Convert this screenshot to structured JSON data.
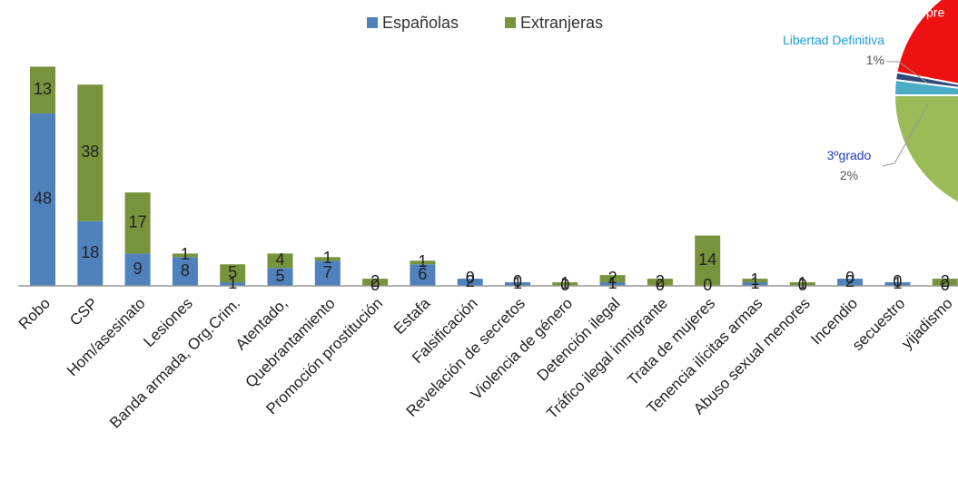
{
  "chart_data": [
    {
      "type": "bar",
      "stacked": true,
      "categories": [
        "Robo",
        "CSP",
        "Hom/asesinato",
        "Lesiones",
        "Banda armada, Org.Crim.",
        "Atentado,",
        "Quebrantamiento",
        "Promoción prostitución",
        "Estafa",
        "Falsificación",
        "Revelación de secretos",
        "Violencia de género",
        "Detención ilegal",
        "Tráfico ilegal inmigrante",
        "Trata de mujeres",
        "Tenencia ilícitas armas",
        "Abuso sexual menores",
        "Incendio",
        "secuestro",
        "yijadismo"
      ],
      "series": [
        {
          "name": "Españolas",
          "color": "#4f81bd",
          "values": [
            48,
            18,
            9,
            8,
            1,
            5,
            7,
            0,
            6,
            2,
            1,
            0,
            1,
            0,
            0,
            1,
            0,
            2,
            1,
            0
          ]
        },
        {
          "name": "Extranjeras",
          "color": "#77933c",
          "values": [
            13,
            38,
            17,
            1,
            5,
            4,
            1,
            2,
            1,
            0,
            0,
            1,
            2,
            2,
            14,
            1,
            1,
            0,
            0,
            2
          ]
        }
      ],
      "legend": "top"
    },
    {
      "type": "pie",
      "categories": [
        "pre",
        "Libertad Definitiva",
        "3ºgrado",
        null
      ],
      "values": [
        22,
        1,
        2,
        75
      ],
      "value_labels": [
        null,
        "1%",
        "2%",
        null
      ],
      "colors": [
        "#ee1111",
        "#2e4a7a",
        "#4bacc6",
        "#9bbb59"
      ]
    }
  ]
}
